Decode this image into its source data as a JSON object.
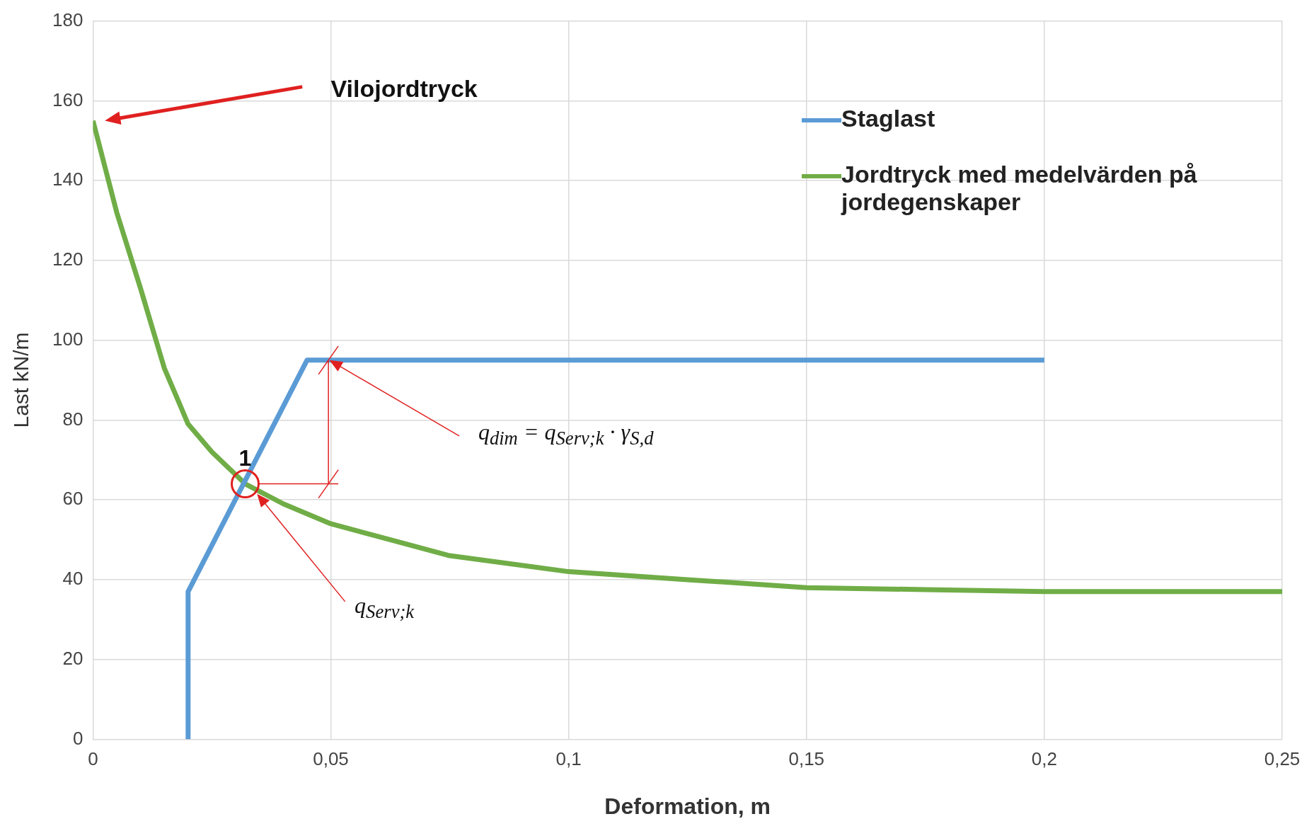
{
  "chart_data": {
    "type": "line",
    "xlabel": "Deformation, m",
    "ylabel": "Last kN/m",
    "xlim": [
      0,
      0.25
    ],
    "xticks": [
      {
        "value": 0,
        "label": "0"
      },
      {
        "value": 0.05,
        "label": "0,05"
      },
      {
        "value": 0.1,
        "label": "0,1"
      },
      {
        "value": 0.15,
        "label": "0,15"
      },
      {
        "value": 0.2,
        "label": "0,2"
      },
      {
        "value": 0.25,
        "label": "0,25"
      }
    ],
    "ylim": [
      0,
      180
    ],
    "yticks": [
      0,
      20,
      40,
      60,
      80,
      100,
      120,
      140,
      160,
      180
    ],
    "grid": true,
    "legend": "top right",
    "marker": "none",
    "line_style": "solid",
    "series": [
      {
        "name": "Staglast",
        "color": "#5b9bd5",
        "x": [
          0.02,
          0.02,
          0.045,
          0.2
        ],
        "values": [
          0,
          37,
          95,
          95
        ]
      },
      {
        "name": "Jordtryck med medelvärden på jordegenskaper",
        "color": "#70ad47",
        "x": [
          0,
          0.005,
          0.01,
          0.015,
          0.02,
          0.025,
          0.032,
          0.04,
          0.05,
          0.075,
          0.1,
          0.125,
          0.15,
          0.175,
          0.2,
          0.25
        ],
        "values": [
          155,
          132,
          113,
          93,
          79,
          72,
          64,
          59,
          54,
          46,
          42,
          40,
          38,
          37.5,
          37,
          37
        ]
      }
    ],
    "annotations": [
      "Vilojordtryck",
      {
        "text": "1",
        "x": 0.032,
        "y": 64
      },
      "q$_{dim}$ = q$_{Serv;k}$ · γ$_{S,d}$",
      "q$_{Serv;k}$"
    ]
  }
}
